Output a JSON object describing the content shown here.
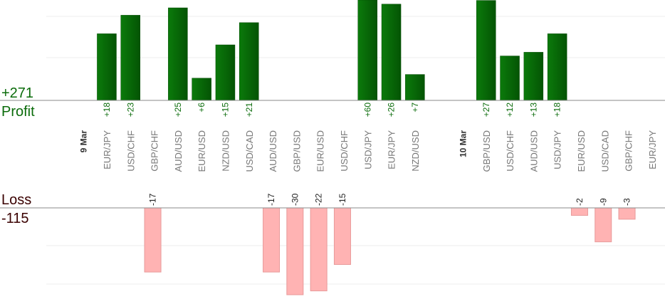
{
  "summary": {
    "profit_total": "+271",
    "profit_label": "Profit",
    "loss_label": "Loss",
    "loss_total": "-115"
  },
  "colors": {
    "profit_bar": "#066606",
    "profit_text": "#0a6b0a",
    "loss_fill": "#ffb3b3",
    "loss_stroke": "#e89a9a",
    "axis": "#888888",
    "grid": "#eeeeee",
    "pair_label": "#777777",
    "date_label": "#333333"
  },
  "chart_data": {
    "type": "bar",
    "categories": [
      {
        "label": "9 Mar",
        "kind": "date"
      },
      {
        "label": "EUR/JPY",
        "profit": 18,
        "profit_label": "+18"
      },
      {
        "label": "USD/CHF",
        "profit": 23,
        "profit_label": "+23"
      },
      {
        "label": "GBP/CHF",
        "loss": 17,
        "loss_label": "-17"
      },
      {
        "label": "AUD/USD",
        "profit": 25,
        "profit_label": "+25"
      },
      {
        "label": "EUR/USD",
        "profit": 6,
        "profit_label": "+6"
      },
      {
        "label": "NZD/USD",
        "profit": 15,
        "profit_label": "+15"
      },
      {
        "label": "USD/CAD",
        "profit": 21,
        "profit_label": "+21"
      },
      {
        "label": "AUD/USD",
        "loss": 17,
        "loss_label": "-17"
      },
      {
        "label": "GBP/USD",
        "loss": 30,
        "loss_label": "-30"
      },
      {
        "label": "EUR/USD",
        "loss": 22,
        "loss_label": "-22"
      },
      {
        "label": "USD/CHF",
        "loss": 15,
        "loss_label": "-15"
      },
      {
        "label": "USD/JPY",
        "profit": 60,
        "profit_label": "+60"
      },
      {
        "label": "EUR/JPY",
        "profit": 26,
        "profit_label": "+26"
      },
      {
        "label": "NZD/USD",
        "profit": 7,
        "profit_label": "+7"
      },
      {
        "label": "",
        "kind": "spacer"
      },
      {
        "label": "10 Mar",
        "kind": "date"
      },
      {
        "label": "GBP/USD",
        "profit": 27,
        "profit_label": "+27"
      },
      {
        "label": "USD/CHF",
        "profit": 12,
        "profit_label": "+12"
      },
      {
        "label": "AUD/USD",
        "profit": 13,
        "profit_label": "+13"
      },
      {
        "label": "USD/JPY",
        "profit": 18,
        "profit_label": "+18"
      },
      {
        "label": "EUR/USD",
        "loss": 2,
        "loss_label": "-2"
      },
      {
        "label": "USD/CAD",
        "loss": 9,
        "loss_label": "-9"
      },
      {
        "label": "GBP/CHF",
        "loss": 3,
        "loss_label": "-3"
      },
      {
        "label": "EUR/JPY"
      }
    ],
    "profit_total": 271,
    "loss_total": -115,
    "profit_ylim": [
      0,
      27
    ],
    "loss_ylim": [
      0,
      22
    ],
    "grid": true,
    "note_clipping": "bars exceeding the visible range are clipped at the panel edge"
  }
}
